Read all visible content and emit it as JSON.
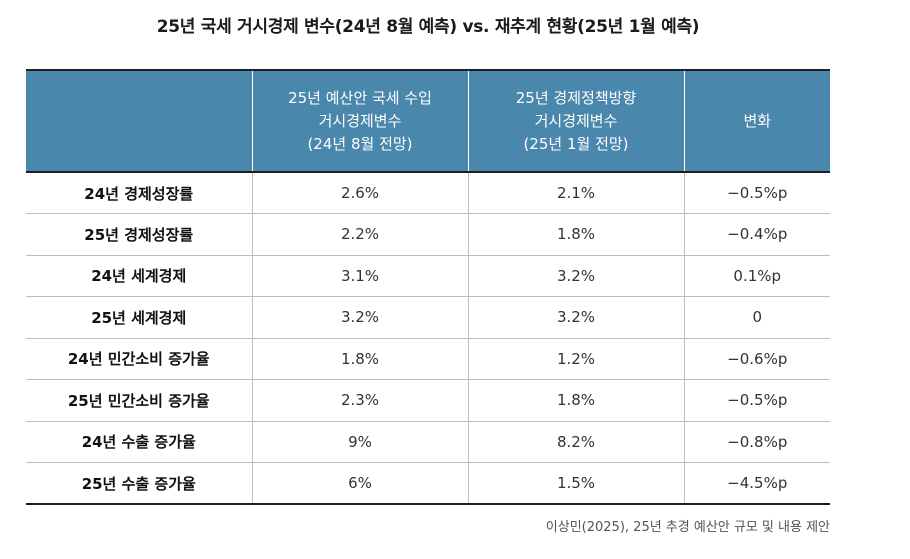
{
  "title": "25년 국세 거시경제 변수(24년 8월 예측) vs. 재추계 현황(25년 1월 예측)",
  "header": {
    "col0": "",
    "col1": [
      "25년 예산안 국세 수입",
      "거시경제변수",
      "(24년 8월 전망)"
    ],
    "col2": [
      "25년 경제정책방향",
      "거시경제변수",
      "(25년 1월 전망)"
    ],
    "col3": "변화"
  },
  "rows": [
    {
      "label": "24년 경제성장률",
      "aug": "2.6%",
      "jan": "2.1%",
      "change": "−0.5%p"
    },
    {
      "label": "25년 경제성장률",
      "aug": "2.2%",
      "jan": "1.8%",
      "change": "−0.4%p"
    },
    {
      "label": "24년 세계경제",
      "aug": "3.1%",
      "jan": "3.2%",
      "change": "0.1%p"
    },
    {
      "label": "25년 세계경제",
      "aug": "3.2%",
      "jan": "3.2%",
      "change": "0"
    },
    {
      "label": "24년 민간소비 증가율",
      "aug": "1.8%",
      "jan": "1.2%",
      "change": "−0.6%p"
    },
    {
      "label": "25년 민간소비 증가율",
      "aug": "2.3%",
      "jan": "1.8%",
      "change": "−0.5%p"
    },
    {
      "label": "24년 수출 증가율",
      "aug": "9%",
      "jan": "8.2%",
      "change": "−0.8%p"
    },
    {
      "label": "25년 수출 증가율",
      "aug": "6%",
      "jan": "1.5%",
      "change": "−4.5%p"
    }
  ],
  "source": "이상민(2025), 25년 추경 예산안 규모 및 내용 제안",
  "colors": {
    "header_bg": "#4a87ad",
    "header_text": "#ffffff",
    "rule": "#1f1f1f",
    "grid": "#bdbdbd"
  }
}
